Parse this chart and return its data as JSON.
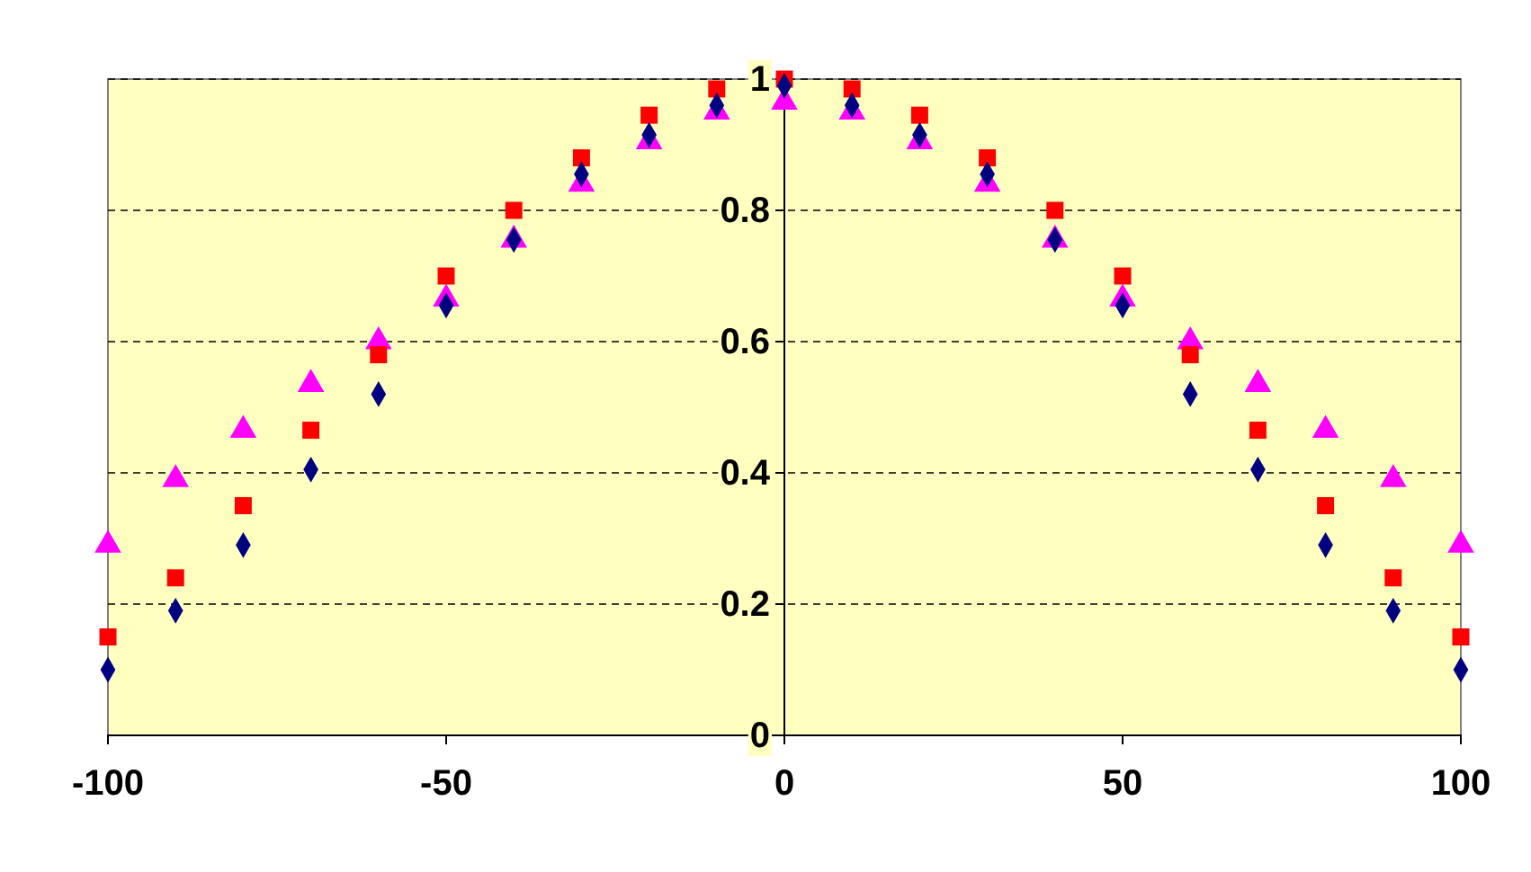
{
  "chart_data": {
    "type": "scatter",
    "x": [
      -100,
      -90,
      -80,
      -70,
      -60,
      -50,
      -40,
      -30,
      -20,
      -10,
      0,
      10,
      20,
      30,
      40,
      50,
      60,
      70,
      80,
      90,
      100
    ],
    "series": [
      {
        "color": "#000080",
        "marker": "diamond",
        "values": [
          0.1,
          0.19,
          0.29,
          0.405,
          0.52,
          0.655,
          0.755,
          0.855,
          0.915,
          0.96,
          0.99,
          0.96,
          0.915,
          0.855,
          0.755,
          0.655,
          0.52,
          0.405,
          0.29,
          0.19,
          0.1
        ]
      },
      {
        "color": "#ff0000",
        "marker": "square",
        "values": [
          0.15,
          0.24,
          0.35,
          0.465,
          0.58,
          0.7,
          0.8,
          0.88,
          0.945,
          0.985,
          1.0,
          0.985,
          0.945,
          0.88,
          0.8,
          0.7,
          0.58,
          0.465,
          0.35,
          0.24,
          0.15
        ]
      },
      {
        "color": "#ff00ff",
        "marker": "triangle",
        "values": [
          0.29,
          0.39,
          0.465,
          0.535,
          0.6,
          0.665,
          0.755,
          0.84,
          0.905,
          0.95,
          0.965,
          0.95,
          0.905,
          0.84,
          0.755,
          0.665,
          0.6,
          0.535,
          0.465,
          0.39,
          0.29
        ]
      }
    ],
    "xlim": [
      -100,
      100
    ],
    "xticks": [
      -100,
      -50,
      0,
      50,
      100
    ],
    "ylim": [
      0,
      1
    ],
    "yticks": [
      0,
      0.2,
      0.4,
      0.6,
      0.8,
      1
    ],
    "grid": "y"
  }
}
